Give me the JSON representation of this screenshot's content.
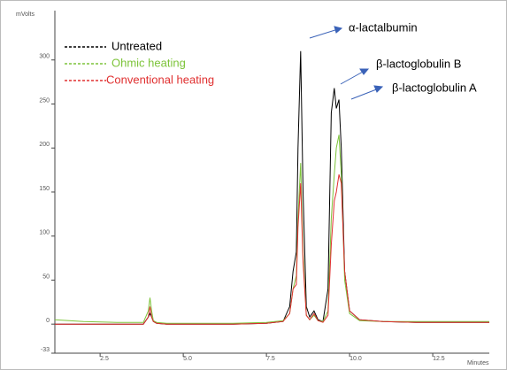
{
  "chart_data": {
    "type": "line",
    "y_label": "mVolts",
    "x_label": "Minutes",
    "annotations": [
      "α-lactalbumin",
      "β-lactoglobulin B",
      "β-lactoglobulin A"
    ],
    "x": [
      1.14,
      2.0,
      3.0,
      3.8,
      3.95,
      4.0,
      4.05,
      4.1,
      4.2,
      4.5,
      5.5,
      6.5,
      7.5,
      8.0,
      8.2,
      8.3,
      8.4,
      8.45,
      8.53,
      8.6,
      8.7,
      8.8,
      8.93,
      9.05,
      9.2,
      9.35,
      9.45,
      9.54,
      9.6,
      9.68,
      9.75,
      9.85,
      10.0,
      10.3,
      11,
      12,
      13,
      14.2
    ],
    "series": [
      {
        "name": "Untreated",
        "color": "#000000",
        "values": [
          0,
          0,
          0,
          0,
          8,
          12,
          8,
          3,
          1,
          0,
          0,
          0,
          1,
          3,
          20,
          60,
          82,
          200,
          310,
          150,
          20,
          8,
          15,
          5,
          3,
          40,
          240,
          268,
          245,
          255,
          200,
          60,
          15,
          5,
          3,
          2,
          2,
          2
        ]
      },
      {
        "name": "Ohmic heating",
        "color": "#7dc43a",
        "values": [
          5,
          3,
          2,
          2,
          15,
          30,
          15,
          4,
          2,
          1,
          1,
          1,
          2,
          4,
          12,
          40,
          55,
          120,
          183,
          80,
          10,
          5,
          10,
          4,
          3,
          15,
          120,
          170,
          200,
          215,
          170,
          50,
          12,
          4,
          3,
          3,
          3,
          3
        ]
      },
      {
        "name": "Conventional heating",
        "color": "#e03030",
        "values": [
          0,
          0,
          0,
          0,
          8,
          20,
          8,
          3,
          1,
          0,
          0,
          0,
          1,
          3,
          12,
          40,
          45,
          110,
          160,
          70,
          10,
          5,
          12,
          4,
          2,
          10,
          90,
          140,
          150,
          170,
          160,
          60,
          15,
          5,
          3,
          2,
          2,
          2
        ]
      }
    ],
    "xlim": [
      1.14,
      14.2
    ],
    "xticks": [
      2.5,
      {
        "value": 5,
        "label": "5.0"
      },
      7.5,
      {
        "value": 10,
        "label": "10.0"
      },
      12.5
    ],
    "ylim": [
      -33,
      350
    ],
    "yticks": [
      -33,
      0,
      50,
      100,
      150,
      200,
      250,
      300
    ],
    "grid": false,
    "legend": "upper left"
  }
}
